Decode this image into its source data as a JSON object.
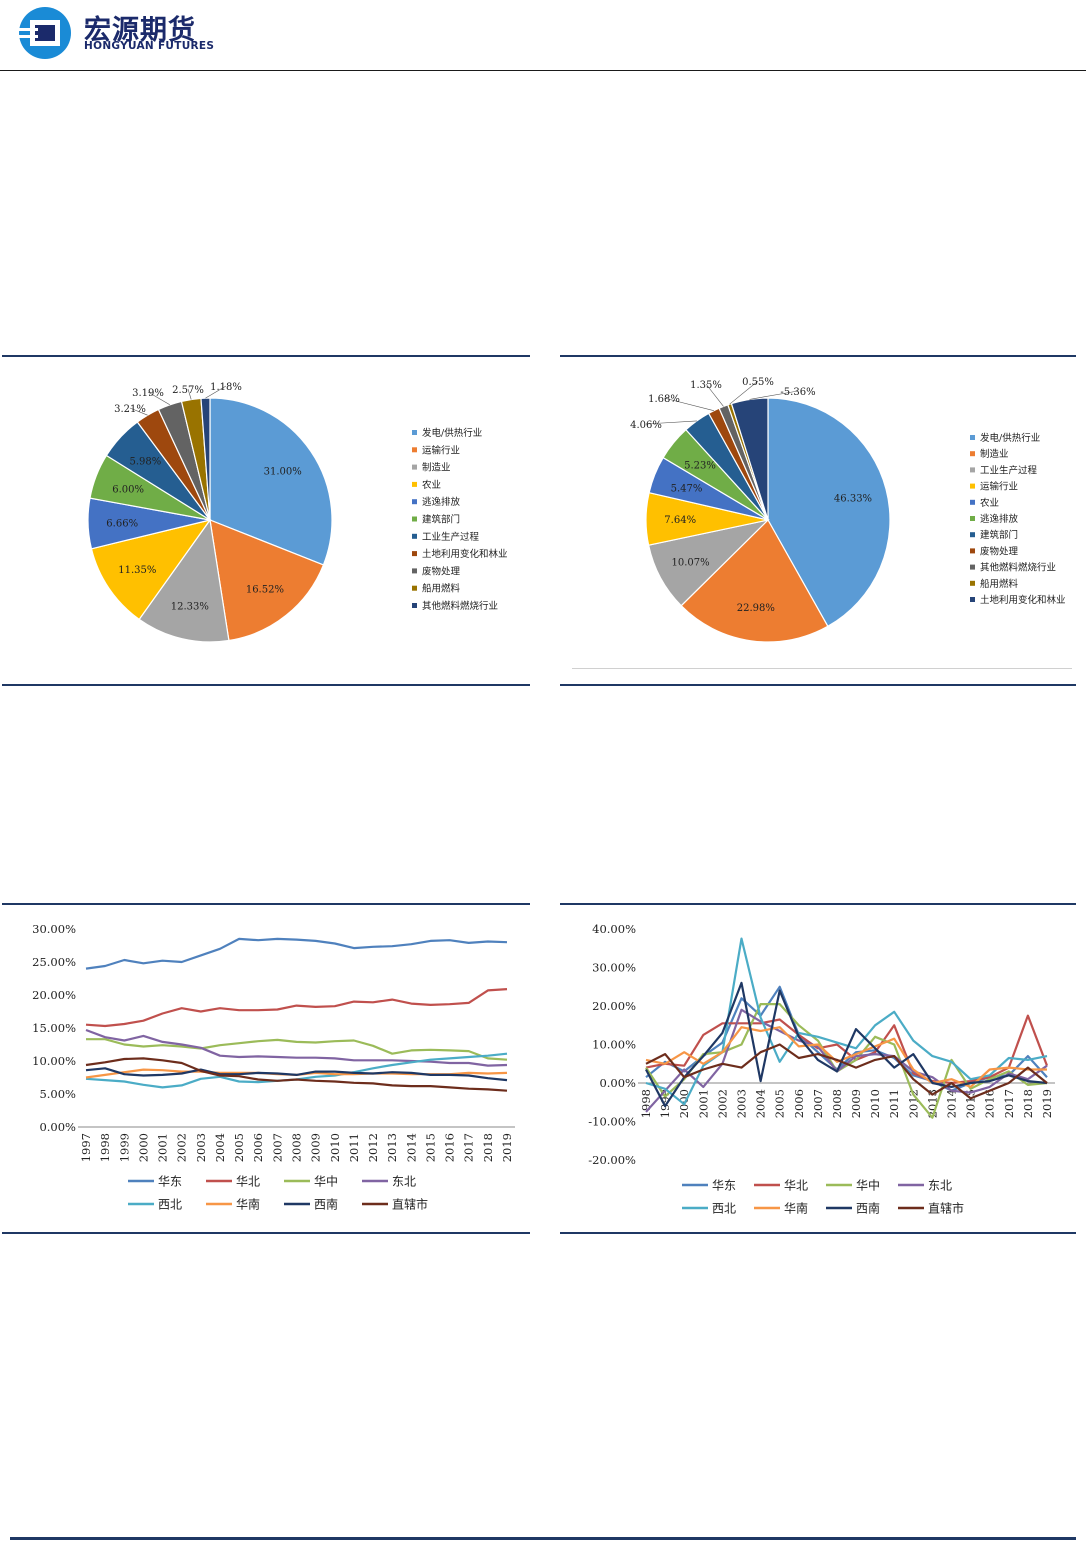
{
  "header": {
    "logo_cn": "宏源期货",
    "logo_en": "HONGYUAN FUTURES",
    "brand_color": "#1b2a6b"
  },
  "chart_data": [
    {
      "type": "pie",
      "labels": [
        "发电/供热行业",
        "运输行业",
        "制造业",
        "农业",
        "逃逸排放",
        "建筑部门",
        "工业生产过程",
        "土地利用变化和林业",
        "废物处理",
        "船用燃料",
        "其他燃料燃烧行业"
      ],
      "values": [
        31.0,
        16.52,
        12.33,
        11.35,
        6.66,
        6.0,
        5.98,
        3.21,
        3.19,
        2.57,
        1.18
      ],
      "value_labels": [
        "31.00%",
        "16.52%",
        "12.33%",
        "11.35%",
        "6.66%",
        "6.00%",
        "5.98%",
        "3.21%",
        "3.19%",
        "2.57%",
        "1.18%"
      ],
      "colors": [
        "#5b9bd5",
        "#ed7d31",
        "#a5a5a5",
        "#ffc000",
        "#4472c4",
        "#70ad47",
        "#255e91",
        "#9e480e",
        "#636363",
        "#997300",
        "#264478"
      ],
      "legend_position": "right"
    },
    {
      "type": "pie",
      "labels": [
        "发电/供热行业",
        "制造业",
        "工业生产过程",
        "运输行业",
        "农业",
        "逃逸排放",
        "建筑部门",
        "废物处理",
        "其他燃料燃烧行业",
        "船用燃料",
        "土地利用变化和林业"
      ],
      "values": [
        46.33,
        22.98,
        10.07,
        7.64,
        5.47,
        5.23,
        4.06,
        1.68,
        1.35,
        0.55,
        -5.36
      ],
      "value_labels": [
        "46.33%",
        "22.98%",
        "10.07%",
        "7.64%",
        "5.47%",
        "5.23%",
        "4.06%",
        "1.68%",
        "1.35%",
        "0.55%",
        "-5.36%"
      ],
      "colors": [
        "#5b9bd5",
        "#ed7d31",
        "#a5a5a5",
        "#ffc000",
        "#4472c4",
        "#70ad47",
        "#255e91",
        "#9e480e",
        "#636363",
        "#997300",
        "#264478"
      ],
      "legend_position": "right"
    },
    {
      "type": "line",
      "x": [
        "1997",
        "1998",
        "1999",
        "2000",
        "2001",
        "2002",
        "2003",
        "2004",
        "2005",
        "2006",
        "2007",
        "2008",
        "2009",
        "2010",
        "2011",
        "2012",
        "2013",
        "2014",
        "2015",
        "2016",
        "2017",
        "2018",
        "2019"
      ],
      "ylim": [
        0,
        30
      ],
      "yticks": [
        "0.00%",
        "5.00%",
        "10.00%",
        "15.00%",
        "20.00%",
        "25.00%",
        "30.00%"
      ],
      "grid": false,
      "legend_position": "bottom",
      "series": [
        {
          "name": "华东",
          "color": "#4f81bd",
          "values": [
            24.0,
            24.4,
            25.3,
            24.8,
            25.2,
            25.0,
            26.0,
            27.0,
            28.5,
            28.3,
            28.5,
            28.4,
            28.2,
            27.8,
            27.1,
            27.3,
            27.4,
            27.7,
            28.2,
            28.3,
            27.9,
            28.1,
            28.0
          ]
        },
        {
          "name": "华北",
          "color": "#c0504d",
          "values": [
            15.5,
            15.3,
            15.6,
            16.1,
            17.2,
            18.0,
            17.5,
            18.0,
            17.7,
            17.7,
            17.8,
            18.4,
            18.2,
            18.3,
            19.0,
            18.9,
            19.3,
            18.7,
            18.5,
            18.6,
            18.8,
            20.7,
            20.9
          ]
        },
        {
          "name": "华中",
          "color": "#9bbb59",
          "values": [
            13.3,
            13.3,
            12.5,
            12.2,
            12.4,
            12.2,
            11.9,
            12.4,
            12.7,
            13.0,
            13.2,
            12.9,
            12.8,
            13.0,
            13.1,
            12.3,
            11.1,
            11.6,
            11.7,
            11.6,
            11.5,
            10.4,
            10.2
          ]
        },
        {
          "name": "东北",
          "color": "#8064a2",
          "values": [
            14.7,
            13.6,
            13.1,
            13.8,
            12.9,
            12.5,
            12.0,
            10.8,
            10.6,
            10.7,
            10.6,
            10.5,
            10.5,
            10.4,
            10.1,
            10.1,
            10.1,
            10.0,
            9.9,
            9.7,
            9.7,
            9.3,
            9.4
          ]
        },
        {
          "name": "西北",
          "color": "#4bacc6",
          "values": [
            7.3,
            7.1,
            6.9,
            6.4,
            6.0,
            6.3,
            7.3,
            7.6,
            6.9,
            6.8,
            7.0,
            7.2,
            7.6,
            7.8,
            8.3,
            8.9,
            9.4,
            9.8,
            10.2,
            10.4,
            10.6,
            10.8,
            11.1
          ]
        },
        {
          "name": "华南",
          "color": "#f79646",
          "values": [
            7.5,
            7.9,
            8.3,
            8.7,
            8.6,
            8.4,
            8.4,
            8.2,
            8.2,
            8.2,
            8.0,
            7.9,
            8.2,
            8.0,
            8.0,
            8.1,
            8.1,
            8.0,
            8.0,
            8.0,
            8.2,
            8.1,
            8.2
          ]
        },
        {
          "name": "西南",
          "color": "#1f3864",
          "values": [
            8.6,
            8.9,
            8.0,
            7.8,
            7.9,
            8.1,
            8.7,
            8.0,
            8.0,
            8.2,
            8.1,
            7.9,
            8.4,
            8.4,
            8.2,
            8.1,
            8.3,
            8.2,
            7.9,
            7.9,
            7.8,
            7.4,
            7.1
          ]
        },
        {
          "name": "直辖市",
          "color": "#6d2d1c",
          "values": [
            9.4,
            9.8,
            10.3,
            10.4,
            10.1,
            9.7,
            8.5,
            7.8,
            7.7,
            7.2,
            7.0,
            7.2,
            7.0,
            6.9,
            6.7,
            6.6,
            6.3,
            6.2,
            6.2,
            6.0,
            5.8,
            5.7,
            5.5
          ]
        }
      ]
    },
    {
      "type": "line",
      "x": [
        "1998",
        "1999",
        "2000",
        "2001",
        "2002",
        "2003",
        "2004",
        "2005",
        "2006",
        "2007",
        "2008",
        "2009",
        "2010",
        "2011",
        "2012",
        "2013",
        "2014",
        "2015",
        "2016",
        "2017",
        "2018",
        "2019"
      ],
      "ylim": [
        -20,
        40
      ],
      "yticks": [
        "-20.00%",
        "-10.00%",
        "0.00%",
        "10.00%",
        "20.00%",
        "30.00%",
        "40.00%"
      ],
      "grid": false,
      "legend_position": "bottom",
      "series": [
        {
          "name": "华东",
          "color": "#4f81bd",
          "values": [
            1.5,
            5.5,
            3.0,
            7.0,
            10.5,
            22.0,
            17.5,
            25.0,
            12.5,
            8.0,
            3.5,
            8.0,
            8.5,
            6.5,
            2.0,
            0.5,
            -2.0,
            0.0,
            1.5,
            2.0,
            7.0,
            1.5
          ]
        },
        {
          "name": "华北",
          "color": "#c0504d",
          "values": [
            4.0,
            5.0,
            4.5,
            12.5,
            15.5,
            15.5,
            15.5,
            16.5,
            12.5,
            9.0,
            10.0,
            6.0,
            8.0,
            15.0,
            2.5,
            0.5,
            0.0,
            0.5,
            1.5,
            4.0,
            17.5,
            4.5
          ]
        },
        {
          "name": "华中",
          "color": "#9bbb59",
          "values": [
            4.0,
            -3.5,
            1.0,
            7.5,
            8.0,
            10.0,
            20.5,
            20.5,
            15.0,
            11.0,
            3.0,
            6.0,
            12.0,
            10.0,
            -3.0,
            -9.0,
            6.0,
            -1.5,
            1.0,
            3.0,
            -0.5,
            0.0
          ]
        },
        {
          "name": "东北",
          "color": "#8064a2",
          "values": [
            -7.5,
            -2.0,
            3.5,
            -1.0,
            5.0,
            19.0,
            16.0,
            13.5,
            11.0,
            9.5,
            3.0,
            7.0,
            7.5,
            7.0,
            3.0,
            1.5,
            -2.0,
            -2.5,
            -1.0,
            2.5,
            1.0,
            4.5
          ]
        },
        {
          "name": "西北",
          "color": "#4bacc6",
          "values": [
            0.0,
            -1.5,
            -5.5,
            4.5,
            8.0,
            37.5,
            17.0,
            5.5,
            13.0,
            12.0,
            10.5,
            9.0,
            15.0,
            18.5,
            11.0,
            7.0,
            5.5,
            1.0,
            2.0,
            6.5,
            6.0,
            7.0
          ]
        },
        {
          "name": "华南",
          "color": "#f79646",
          "values": [
            6.0,
            5.0,
            8.0,
            5.0,
            8.0,
            14.5,
            13.5,
            14.5,
            9.5,
            10.0,
            5.5,
            7.5,
            9.5,
            11.5,
            3.5,
            0.0,
            1.0,
            -1.0,
            3.5,
            4.0,
            3.5,
            3.5
          ]
        },
        {
          "name": "西南",
          "color": "#1f3864",
          "values": [
            3.5,
            -6.0,
            1.5,
            7.0,
            13.0,
            26.0,
            0.5,
            24.0,
            12.0,
            6.0,
            3.0,
            14.0,
            9.0,
            4.0,
            7.5,
            0.0,
            -1.0,
            0.0,
            0.5,
            2.0,
            0.5,
            0.0
          ]
        },
        {
          "name": "直辖市",
          "color": "#6d2d1c",
          "values": [
            5.0,
            7.5,
            1.5,
            3.5,
            5.0,
            4.0,
            8.0,
            10.0,
            6.5,
            7.5,
            6.0,
            4.0,
            6.0,
            7.0,
            1.0,
            -3.0,
            0.0,
            -4.0,
            -2.0,
            0.0,
            4.0,
            0.0
          ]
        }
      ]
    }
  ]
}
